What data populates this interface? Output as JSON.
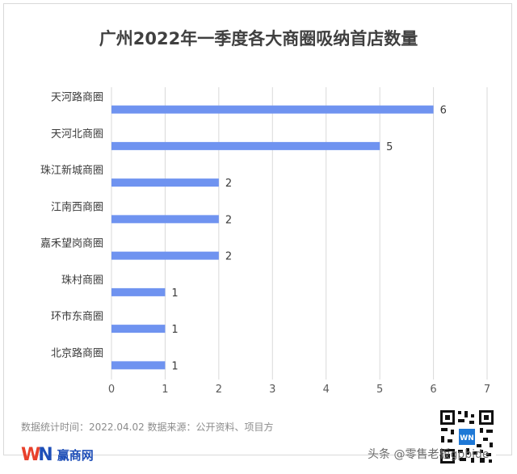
{
  "chart_data": {
    "type": "bar",
    "orientation": "horizontal",
    "title": "广州2022年一季度各大商圈吸纳首店数量",
    "categories": [
      "天河路商圈",
      "天河北商圈",
      "珠江新城商圈",
      "江南西商圈",
      "嘉禾望岗商圈",
      "珠村商圈",
      "环市东商圈",
      "北京路商圈"
    ],
    "values": [
      6,
      5,
      2,
      2,
      2,
      1,
      1,
      1
    ],
    "xlim": [
      0,
      7
    ],
    "xticks": [
      "0",
      "1",
      "2",
      "3",
      "4",
      "5",
      "6",
      "7"
    ],
    "grid": true,
    "bar_color": "#6f93f0"
  },
  "footer": {
    "note": "数据统计时间：2022.04.02 数据来源：公开资料、项目方",
    "logo_text": "赢商网",
    "logo_mark_w": "W",
    "logo_mark_n": "N",
    "qr_badge": "WN"
  },
  "watermark": "头条 @零售老板gpbide"
}
